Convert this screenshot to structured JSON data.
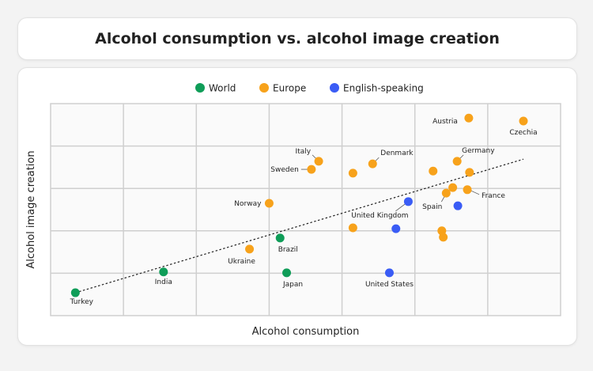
{
  "chart_data": {
    "type": "scatter",
    "title": "Alcohol consumption vs. alcohol image creation",
    "xlabel": "Alcohol consumption",
    "ylabel": "Alcohol image creation",
    "xlim": [
      0,
      7
    ],
    "ylim": [
      0,
      5
    ],
    "grid": true,
    "legend_placement": "top-center",
    "series": [
      {
        "name": "World",
        "color": "#0f9d58",
        "points": [
          {
            "label": "Turkey",
            "x": 0.34,
            "y": 0.54
          },
          {
            "label": "India",
            "x": 1.55,
            "y": 1.03
          },
          {
            "label": "Brazil",
            "x": 3.15,
            "y": 1.83
          },
          {
            "label": "Japan",
            "x": 3.24,
            "y": 1.01
          }
        ]
      },
      {
        "name": "Europe",
        "color": "#f7a21b",
        "points": [
          {
            "label": "Ukraine",
            "x": 2.73,
            "y": 1.57
          },
          {
            "label": "Norway",
            "x": 3.0,
            "y": 2.65
          },
          {
            "label": "Sweden",
            "x": 3.58,
            "y": 3.45
          },
          {
            "label": "Italy",
            "x": 3.68,
            "y": 3.64
          },
          {
            "label": "",
            "x": 4.15,
            "y": 3.36
          },
          {
            "label": "Denmark",
            "x": 4.42,
            "y": 3.58
          },
          {
            "label": "",
            "x": 4.15,
            "y": 2.07
          },
          {
            "label": "",
            "x": 5.25,
            "y": 3.41
          },
          {
            "label": "Germany",
            "x": 5.58,
            "y": 3.64
          },
          {
            "label": "",
            "x": 5.75,
            "y": 3.38
          },
          {
            "label": "",
            "x": 5.52,
            "y": 3.02
          },
          {
            "label": "Spain",
            "x": 5.43,
            "y": 2.89
          },
          {
            "label": "France",
            "x": 5.72,
            "y": 2.97
          },
          {
            "label": "",
            "x": 5.37,
            "y": 2.0
          },
          {
            "label": "",
            "x": 5.39,
            "y": 1.85
          },
          {
            "label": "Austria",
            "x": 5.74,
            "y": 4.66
          },
          {
            "label": "Czechia",
            "x": 6.49,
            "y": 4.59
          }
        ]
      },
      {
        "name": "English-speaking",
        "color": "#3a5cf5",
        "points": [
          {
            "label": "United Kingdom",
            "x": 4.91,
            "y": 2.69
          },
          {
            "label": "",
            "x": 4.74,
            "y": 2.05
          },
          {
            "label": "United States",
            "x": 4.65,
            "y": 1.01
          },
          {
            "label": "",
            "x": 5.59,
            "y": 2.59
          }
        ]
      }
    ],
    "trendline": {
      "style": "dotted",
      "from": [
        0.34,
        0.54
      ],
      "to": [
        6.49,
        3.69
      ]
    }
  }
}
